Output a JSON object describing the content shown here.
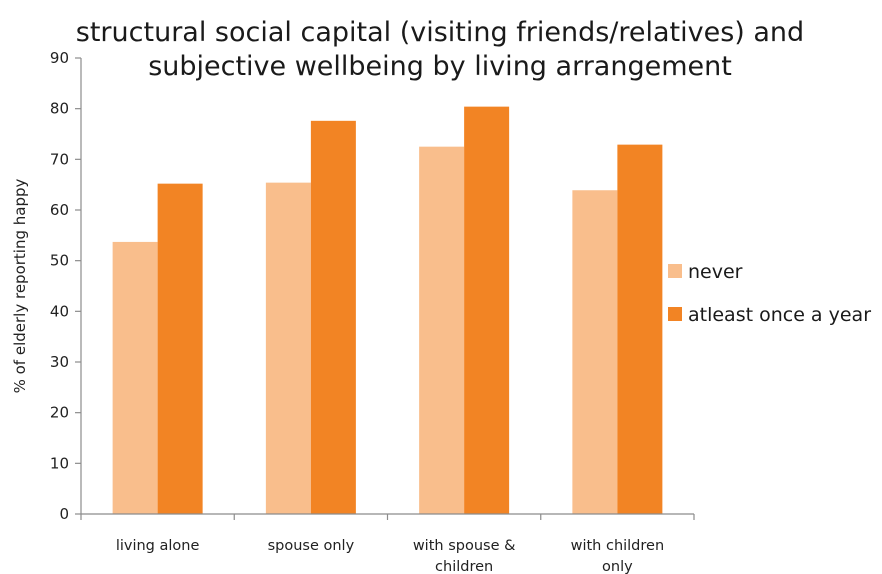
{
  "chart_data": {
    "type": "bar",
    "title": "structural social capital (visiting friends/relatives) and subjective wellbeing by living arrangement",
    "title_lines": [
      "structural social capital (visiting friends/relatives) and",
      "subjective wellbeing by living arrangement"
    ],
    "xlabel": "",
    "ylabel": "% of elderly reporting happy",
    "ylim": [
      0,
      90
    ],
    "yticks": [
      0,
      10,
      20,
      30,
      40,
      50,
      60,
      70,
      80,
      90
    ],
    "categories": [
      [
        "living alone"
      ],
      [
        "spouse only"
      ],
      [
        "with spouse &",
        "children"
      ],
      [
        "with children",
        "only"
      ]
    ],
    "series": [
      {
        "name": "never",
        "color": "#f9be8c",
        "values": [
          53.7,
          65.4,
          72.5,
          63.9
        ]
      },
      {
        "name": "atleast once a year",
        "color": "#f28424",
        "values": [
          65.2,
          77.6,
          80.4,
          72.9
        ]
      }
    ],
    "grid": false,
    "legend_position": "right"
  }
}
